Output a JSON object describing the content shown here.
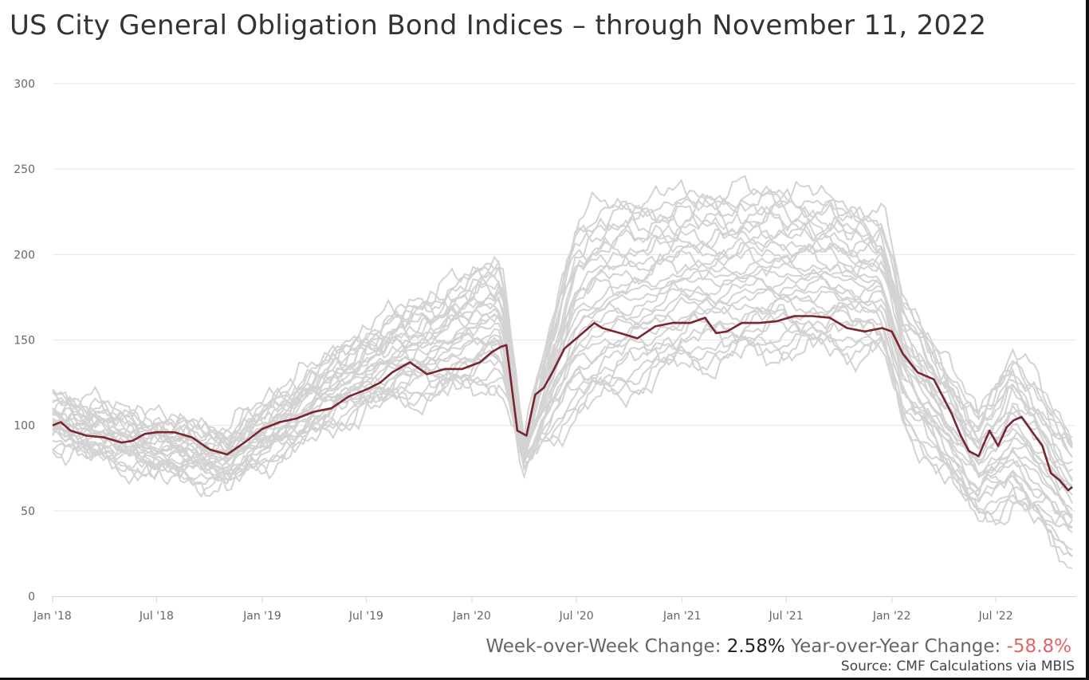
{
  "title": "US City General Obligation Bond Indices – through November 11, 2022",
  "footer": {
    "wow_label": "Week-over-Week Change:",
    "wow_value": "2.58%",
    "yoy_label": "Year-over-Year Change:",
    "yoy_value": "-58.8%",
    "source": "Source: CMF Calculations via MBIS"
  },
  "colors": {
    "highlight": "#7a2530",
    "background_series": "#d3d3d3",
    "grid": "#e6e6e6",
    "axis": "#ccd6eb",
    "yoy_negative": "#e06666"
  },
  "chart_data": {
    "type": "line",
    "title": "US City General Obligation Bond Indices – through November 11, 2022",
    "xlabel": "",
    "ylabel": "",
    "ylim": [
      0,
      300
    ],
    "yticks": [
      0,
      50,
      100,
      150,
      200,
      250,
      300
    ],
    "xlim": [
      "2018-01-01",
      "2022-11-18"
    ],
    "xticks": [
      {
        "date": "2018-01-01",
        "label": "Jan '18"
      },
      {
        "date": "2018-07-01",
        "label": "Jul '18"
      },
      {
        "date": "2019-01-01",
        "label": "Jan '19"
      },
      {
        "date": "2019-07-01",
        "label": "Jul '19"
      },
      {
        "date": "2020-01-01",
        "label": "Jan '20"
      },
      {
        "date": "2020-07-01",
        "label": "Jul '20"
      },
      {
        "date": "2021-01-01",
        "label": "Jan '21"
      },
      {
        "date": "2021-07-01",
        "label": "Jul '21"
      },
      {
        "date": "2022-01-01",
        "label": "Jan '22"
      },
      {
        "date": "2022-07-01",
        "label": "Jul '22"
      }
    ],
    "grid": true,
    "legend": "none",
    "highlight_series": {
      "x": [
        "2018-01-01",
        "2018-01-15",
        "2018-02-01",
        "2018-03-01",
        "2018-04-01",
        "2018-05-01",
        "2018-05-20",
        "2018-06-10",
        "2018-07-01",
        "2018-08-01",
        "2018-09-01",
        "2018-10-01",
        "2018-11-01",
        "2018-12-01",
        "2019-01-01",
        "2019-02-01",
        "2019-03-01",
        "2019-04-01",
        "2019-05-01",
        "2019-06-01",
        "2019-07-01",
        "2019-07-25",
        "2019-08-15",
        "2019-09-15",
        "2019-10-15",
        "2019-11-15",
        "2019-12-15",
        "2020-01-15",
        "2020-02-05",
        "2020-02-20",
        "2020-03-01",
        "2020-03-20",
        "2020-04-05",
        "2020-04-20",
        "2020-05-05",
        "2020-05-20",
        "2020-06-10",
        "2020-07-01",
        "2020-08-01",
        "2020-08-15",
        "2020-09-15",
        "2020-10-15",
        "2020-11-15",
        "2020-12-15",
        "2021-01-15",
        "2021-02-10",
        "2021-03-01",
        "2021-03-20",
        "2021-04-15",
        "2021-05-15",
        "2021-06-15",
        "2021-07-15",
        "2021-08-15",
        "2021-09-15",
        "2021-10-15",
        "2021-11-15",
        "2021-12-15",
        "2022-01-01",
        "2022-01-20",
        "2022-02-15",
        "2022-03-15",
        "2022-04-15",
        "2022-05-01",
        "2022-05-15",
        "2022-06-01",
        "2022-06-20",
        "2022-07-05",
        "2022-07-20",
        "2022-08-01",
        "2022-08-15",
        "2022-09-05",
        "2022-09-20",
        "2022-10-05",
        "2022-10-20",
        "2022-11-04",
        "2022-11-11"
      ],
      "values": [
        100,
        102,
        97,
        94,
        93,
        90,
        91,
        95,
        96,
        96,
        93,
        86,
        83,
        90,
        98,
        102,
        104,
        108,
        110,
        117,
        121,
        125,
        131,
        137,
        130,
        133,
        133,
        137,
        143,
        146,
        147,
        97,
        94,
        118,
        122,
        131,
        145,
        151,
        160,
        157,
        154,
        151,
        158,
        160,
        160,
        163,
        154,
        155,
        160,
        160,
        161,
        164,
        164,
        163,
        157,
        155,
        157,
        155,
        142,
        131,
        127,
        107,
        94,
        85,
        82,
        97,
        88,
        99,
        103,
        105,
        95,
        88,
        72,
        68,
        62,
        64
      ]
    },
    "background_series_count": 30,
    "background_series_note": "grey lines: individual city index series spanning the same dates",
    "background_envelope": {
      "x": [
        "2018-01-01",
        "2018-07-01",
        "2018-11-01",
        "2019-07-01",
        "2020-02-20",
        "2020-04-01",
        "2020-07-01",
        "2020-09-01",
        "2021-01-01",
        "2021-07-01",
        "2021-12-15",
        "2022-01-20",
        "2022-06-01",
        "2022-08-01",
        "2022-11-11"
      ],
      "upper": [
        120,
        105,
        98,
        160,
        205,
        90,
        230,
        240,
        245,
        248,
        232,
        180,
        110,
        150,
        98
      ],
      "lower": [
        88,
        68,
        63,
        108,
        122,
        74,
        100,
        110,
        130,
        140,
        140,
        94,
        41,
        45,
        17
      ]
    }
  }
}
